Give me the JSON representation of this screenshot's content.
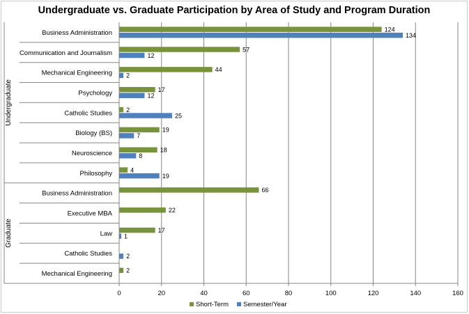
{
  "chart_data": {
    "type": "bar",
    "orientation": "horizontal",
    "title": "Undergraduate vs. Graduate Participation by Area of Study and Program Duration",
    "xlim": [
      0,
      160
    ],
    "xticks": [
      0,
      20,
      40,
      60,
      80,
      100,
      120,
      140,
      160
    ],
    "grid": true,
    "legend_position": "bottom",
    "groups": [
      {
        "label": "Undergraduate",
        "categories": [
          "Business Administration",
          "Communication and Journalism",
          "Mechanical Engineering",
          "Psychology",
          "Catholic Studies",
          "Biology (BS)",
          "Neuroscience",
          "Philosophy"
        ]
      },
      {
        "label": "Graduate",
        "categories": [
          "Business Administration",
          "Executive MBA",
          "Law",
          "Catholic Studies",
          "Mechanical Engineering"
        ]
      }
    ],
    "series": [
      {
        "name": "Short-Term",
        "color": "#77933c",
        "values": [
          124,
          57,
          44,
          17,
          2,
          19,
          18,
          4,
          66,
          22,
          17,
          null,
          2
        ]
      },
      {
        "name": "Semester/Year",
        "color": "#4f81bd",
        "values": [
          134,
          12,
          2,
          12,
          25,
          7,
          8,
          19,
          null,
          null,
          1,
          2,
          null
        ]
      }
    ]
  }
}
